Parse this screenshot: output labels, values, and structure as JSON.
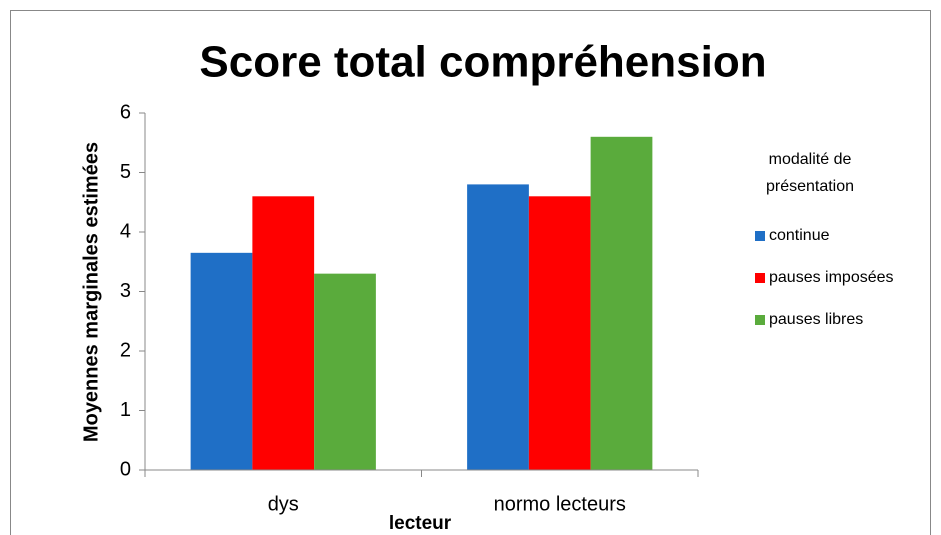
{
  "chart_data": {
    "type": "bar",
    "title": "Score total compréhension",
    "y_label": "Moyennes marginales estimées",
    "x_label": "lecteur",
    "legend_title": "modalité de présentation",
    "categories": [
      "dys",
      "normo lecteurs"
    ],
    "series": [
      {
        "name": "continue",
        "color": "#1f6fc6",
        "values": [
          3.65,
          4.8
        ]
      },
      {
        "name": "pauses imposées",
        "color": "#ff0000",
        "values": [
          4.6,
          4.6
        ]
      },
      {
        "name": "pauses libres",
        "color": "#5aab3c",
        "values": [
          3.3,
          5.6
        ]
      }
    ],
    "ylim": [
      0,
      6
    ],
    "yticks": [
      0,
      1,
      2,
      3,
      4,
      5,
      6
    ],
    "legend": "right"
  }
}
